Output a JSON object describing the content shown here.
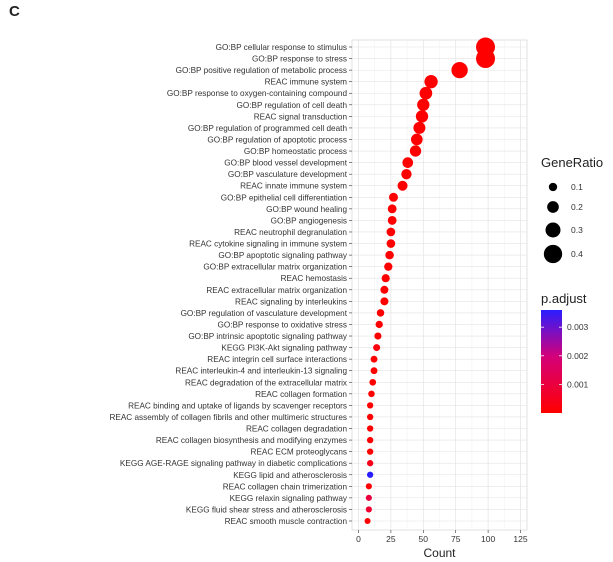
{
  "panel_label": "C",
  "chart_data": {
    "type": "scatter",
    "xlabel": "Count",
    "xlim": [
      -5,
      130
    ],
    "xticks": [
      0,
      25,
      50,
      75,
      100,
      125
    ],
    "grid": true,
    "categories": [
      "GO:BP cellular response to stimulus",
      "GO:BP response to stress",
      "GO:BP positive regulation of metabolic process",
      "REAC immune system",
      "GO:BP response to oxygen-containing compound",
      "GO:BP regulation of cell death",
      "REAC signal transduction",
      "GO:BP regulation of programmed cell death",
      "GO:BP regulation of apoptotic process",
      "GO:BP homeostatic process",
      "GO:BP blood vessel development",
      "GO:BP vasculature development",
      "REAC innate immune system",
      "GO:BP epithelial cell differentiation",
      "GO:BP wound healing",
      "GO:BP angiogenesis",
      "REAC neutrophil degranulation",
      "REAC cytokine signaling in immune system",
      "GO:BP apoptotic signaling pathway",
      "GO:BP extracellular matrix organization",
      "REAC hemostasis",
      "REAC extracellular matrix organization",
      "REAC signaling by interleukins",
      "GO:BP regulation of vasculature development",
      "GO:BP response to oxidative stress",
      "GO:BP intrinsic apoptotic signaling pathway",
      "KEGG PI3K-Akt signaling pathway",
      "REAC integrin cell surface interactions",
      "REAC interleukin-4 and interleukin-13 signaling",
      "REAC degradation of the extracellular matrix",
      "REAC collagen formation",
      "REAC binding and uptake of ligands by scavenger receptors",
      "REAC assembly of collagen fibrils and other multimeric structures",
      "REAC collagen degradation",
      "REAC collagen biosynthesis and modifying enzymes",
      "REAC ECM proteoglycans",
      "KEGG AGE-RAGE signaling pathway in diabetic complications",
      "KEGG lipid and atherosclerosis",
      "REAC collagen chain trimerization",
      "KEGG relaxin signaling pathway",
      "KEGG fluid shear stress and atherosclerosis",
      "REAC smooth muscle contraction"
    ],
    "points": [
      {
        "count": 98,
        "gene_ratio": 0.42,
        "p_adjust": 0.0
      },
      {
        "count": 98,
        "gene_ratio": 0.42,
        "p_adjust": 0.0
      },
      {
        "count": 78,
        "gene_ratio": 0.34,
        "p_adjust": 0.0
      },
      {
        "count": 56,
        "gene_ratio": 0.25,
        "p_adjust": 0.0
      },
      {
        "count": 52,
        "gene_ratio": 0.23,
        "p_adjust": 0.0
      },
      {
        "count": 50,
        "gene_ratio": 0.22,
        "p_adjust": 0.0
      },
      {
        "count": 49,
        "gene_ratio": 0.22,
        "p_adjust": 0.0
      },
      {
        "count": 47,
        "gene_ratio": 0.21,
        "p_adjust": 0.0
      },
      {
        "count": 45,
        "gene_ratio": 0.2,
        "p_adjust": 0.0
      },
      {
        "count": 44,
        "gene_ratio": 0.19,
        "p_adjust": 0.0
      },
      {
        "count": 38,
        "gene_ratio": 0.17,
        "p_adjust": 0.0
      },
      {
        "count": 37,
        "gene_ratio": 0.16,
        "p_adjust": 0.0
      },
      {
        "count": 34,
        "gene_ratio": 0.15,
        "p_adjust": 0.0
      },
      {
        "count": 27,
        "gene_ratio": 0.12,
        "p_adjust": 0.0
      },
      {
        "count": 26,
        "gene_ratio": 0.115,
        "p_adjust": 0.0
      },
      {
        "count": 26,
        "gene_ratio": 0.115,
        "p_adjust": 0.0
      },
      {
        "count": 25,
        "gene_ratio": 0.11,
        "p_adjust": 0.0
      },
      {
        "count": 25,
        "gene_ratio": 0.11,
        "p_adjust": 0.0
      },
      {
        "count": 24,
        "gene_ratio": 0.105,
        "p_adjust": 0.0
      },
      {
        "count": 23,
        "gene_ratio": 0.1,
        "p_adjust": 0.0
      },
      {
        "count": 21,
        "gene_ratio": 0.095,
        "p_adjust": 0.0
      },
      {
        "count": 20,
        "gene_ratio": 0.09,
        "p_adjust": 0.0
      },
      {
        "count": 20,
        "gene_ratio": 0.09,
        "p_adjust": 0.0
      },
      {
        "count": 17,
        "gene_ratio": 0.075,
        "p_adjust": 0.0
      },
      {
        "count": 16,
        "gene_ratio": 0.07,
        "p_adjust": 0.0
      },
      {
        "count": 15,
        "gene_ratio": 0.065,
        "p_adjust": 0.0
      },
      {
        "count": 14,
        "gene_ratio": 0.06,
        "p_adjust": 0.0002
      },
      {
        "count": 12,
        "gene_ratio": 0.055,
        "p_adjust": 0.0
      },
      {
        "count": 12,
        "gene_ratio": 0.055,
        "p_adjust": 0.0
      },
      {
        "count": 11,
        "gene_ratio": 0.05,
        "p_adjust": 0.0
      },
      {
        "count": 10,
        "gene_ratio": 0.045,
        "p_adjust": 0.0
      },
      {
        "count": 9,
        "gene_ratio": 0.04,
        "p_adjust": 0.0
      },
      {
        "count": 9,
        "gene_ratio": 0.04,
        "p_adjust": 0.0
      },
      {
        "count": 9,
        "gene_ratio": 0.04,
        "p_adjust": 0.0
      },
      {
        "count": 9,
        "gene_ratio": 0.04,
        "p_adjust": 0.0
      },
      {
        "count": 9,
        "gene_ratio": 0.04,
        "p_adjust": 0.0
      },
      {
        "count": 9,
        "gene_ratio": 0.04,
        "p_adjust": 0.0004
      },
      {
        "count": 9,
        "gene_ratio": 0.04,
        "p_adjust": 0.0036
      },
      {
        "count": 8,
        "gene_ratio": 0.035,
        "p_adjust": 0.0
      },
      {
        "count": 8,
        "gene_ratio": 0.035,
        "p_adjust": 0.001
      },
      {
        "count": 8,
        "gene_ratio": 0.035,
        "p_adjust": 0.0008
      },
      {
        "count": 7,
        "gene_ratio": 0.03,
        "p_adjust": 0.0
      }
    ],
    "size_legend": {
      "title": "GeneRatio",
      "values": [
        0.1,
        0.2,
        0.3,
        0.4
      ],
      "labels": [
        "0.1",
        "0.2",
        "0.3",
        "0.4"
      ]
    },
    "color_legend": {
      "title": "p.adjust",
      "range": [
        0,
        0.0036
      ],
      "ticks": [
        0.001,
        0.002,
        0.003
      ],
      "labels": [
        "0.001",
        "0.002",
        "0.003"
      ],
      "low_color": "#ff0000",
      "high_color": "#0000ff"
    },
    "legend_position": "right"
  }
}
